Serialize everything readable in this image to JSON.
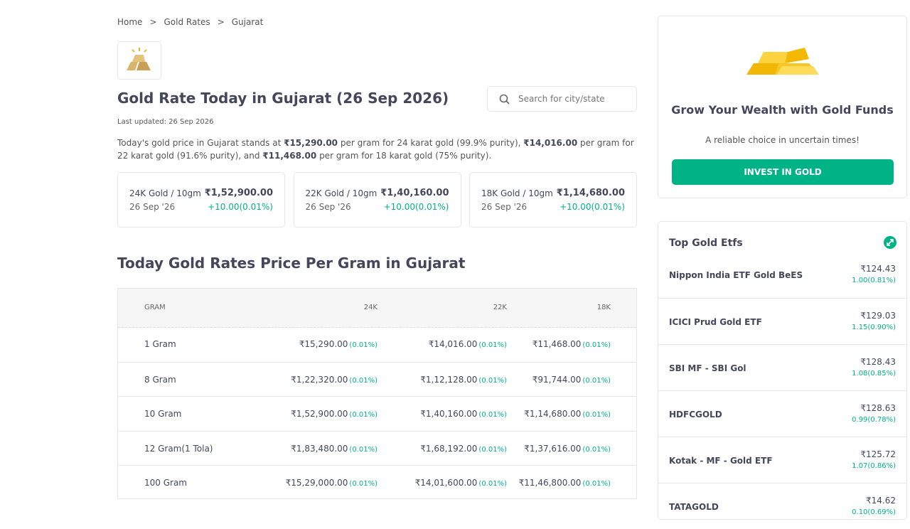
{
  "breadcrumb": {
    "items": [
      "Home",
      "Gold Rates",
      "Gujarat"
    ],
    "separator": ">"
  },
  "header": {
    "title": "Gold Rate Today in Gujarat (26 Sep 2026)",
    "search_placeholder": "Search for city/state",
    "last_updated": "Last updated: 26 Sep 2026"
  },
  "description": [
    "Today's gold price in Gujarat stands at ",
    "₹15,290.00",
    " per gram for 24 karat gold (99.9% purity), ",
    "₹14,016.00",
    " per gram for 22 karat gold (91.6% purity), and ",
    "₹11,468.00",
    " per gram for 18 karat gold (75% purity)."
  ],
  "cards": [
    {
      "label": "24K Gold / 10gm",
      "date": "26 Sep '26",
      "price": "₹1,52,900.00",
      "change": "+10.00(0.01%)"
    },
    {
      "label": "22K Gold / 10gm",
      "date": "26 Sep '26",
      "price": "₹1,40,160.00",
      "change": "+10.00(0.01%)"
    },
    {
      "label": "18K Gold / 10gm",
      "date": "26 Sep '26",
      "price": "₹1,14,680.00",
      "change": "+10.00(0.01%)"
    }
  ],
  "table": {
    "heading": "Today Gold Rates Price Per Gram in Gujarat",
    "columns": [
      "GRAM",
      "24K",
      "22K",
      "18K"
    ],
    "rows": [
      {
        "gram": "1 Gram",
        "cells": [
          {
            "price": "₹15,290.00",
            "change": "(0.01%)"
          },
          {
            "price": "₹14,016.00",
            "change": "(0.01%)"
          },
          {
            "price": "₹11,468.00",
            "change": "(0.01%)"
          }
        ]
      },
      {
        "gram": "8 Gram",
        "cells": [
          {
            "price": "₹1,22,320.00",
            "change": "(0.01%)"
          },
          {
            "price": "₹1,12,128.00",
            "change": "(0.01%)"
          },
          {
            "price": "₹91,744.00",
            "change": "(0.01%)"
          }
        ]
      },
      {
        "gram": "10 Gram",
        "cells": [
          {
            "price": "₹1,52,900.00",
            "change": "(0.01%)"
          },
          {
            "price": "₹1,40,160.00",
            "change": "(0.01%)"
          },
          {
            "price": "₹1,14,680.00",
            "change": "(0.01%)"
          }
        ]
      },
      {
        "gram": "12 Gram(1 Tola)",
        "cells": [
          {
            "price": "₹1,83,480.00",
            "change": "(0.01%)"
          },
          {
            "price": "₹1,68,192.00",
            "change": "(0.01%)"
          },
          {
            "price": "₹1,37,616.00",
            "change": "(0.01%)"
          }
        ]
      },
      {
        "gram": "100 Gram",
        "cells": [
          {
            "price": "₹15,29,000.00",
            "change": "(0.01%)"
          },
          {
            "price": "₹14,01,600.00",
            "change": "(0.01%)"
          },
          {
            "price": "₹11,46,800.00",
            "change": "(0.01%)"
          }
        ]
      }
    ]
  },
  "promo": {
    "title": "Grow Your Wealth with Gold Funds",
    "subtitle": "A reliable choice in uncertain times!",
    "button": "INVEST IN GOLD"
  },
  "etfs": {
    "heading": "Top Gold Etfs",
    "items": [
      {
        "name": "Nippon India ETF Gold BeES",
        "price": "₹124.43",
        "change": "1.00(0.81%)"
      },
      {
        "name": "ICICI Prud Gold ETF",
        "price": "₹129.03",
        "change": "1.15(0.90%)"
      },
      {
        "name": "SBI MF - SBI Gol",
        "price": "₹128.43",
        "change": "1.08(0.85%)"
      },
      {
        "name": "HDFCGOLD",
        "price": "₹128.63",
        "change": "0.99(0.78%)"
      },
      {
        "name": "Kotak - MF - Gold ETF",
        "price": "₹125.72",
        "change": "1.07(0.86%)"
      },
      {
        "name": "TATAGOLD",
        "price": "₹14.62",
        "change": "0.10(0.69%)"
      }
    ]
  }
}
